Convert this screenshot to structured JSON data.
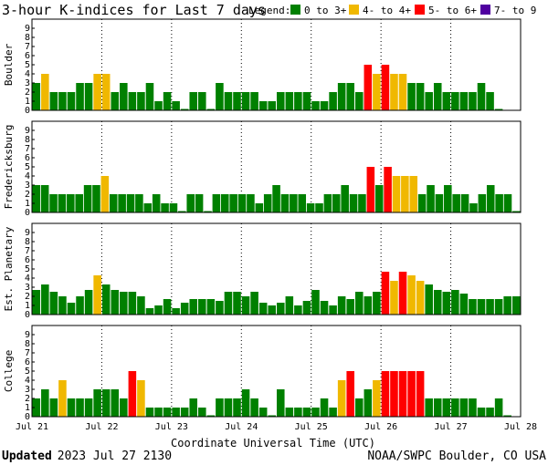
{
  "chart_data": {
    "type": "bar",
    "title": "3-hour K-indices for Last 7 days",
    "legend": {
      "label": "Legend:",
      "entries": [
        {
          "label": "0 to 3+",
          "color": "#008000"
        },
        {
          "label": "4- to 4+",
          "color": "#f0b800"
        },
        {
          "label": "5- to 6+",
          "color": "#ff0000"
        },
        {
          "label": "7- to 9",
          "color": "#5000a0"
        }
      ]
    },
    "xlabel": "Coordinate Universal Time (UTC)",
    "x_ticks": [
      "Jul 21",
      "Jul 22",
      "Jul 23",
      "Jul 24",
      "Jul 25",
      "Jul 26",
      "Jul 27",
      "Jul 28"
    ],
    "ylim": [
      0,
      9
    ],
    "y_ticks": [
      "0",
      "1",
      "2",
      "3",
      "4",
      "5",
      "6",
      "7",
      "8",
      "9"
    ],
    "series": [
      {
        "name": "Boulder",
        "values": [
          3,
          4,
          2,
          2,
          2,
          3,
          3,
          4,
          4,
          2,
          3,
          2,
          2,
          3,
          1,
          2,
          1,
          0,
          2,
          2,
          0,
          3,
          2,
          2,
          2,
          2,
          1,
          1,
          2,
          2,
          2,
          2,
          1,
          1,
          2,
          3,
          3,
          2,
          5,
          4,
          5,
          4,
          4,
          3,
          3,
          2,
          3,
          2,
          2,
          2,
          2,
          3,
          2,
          0
        ]
      },
      {
        "name": "Fredericksburg",
        "values": [
          3,
          3,
          2,
          2,
          2,
          2,
          3,
          3,
          4,
          2,
          2,
          2,
          2,
          1,
          2,
          1,
          1,
          0,
          2,
          2,
          0,
          2,
          2,
          2,
          2,
          2,
          1,
          2,
          3,
          2,
          2,
          2,
          1,
          1,
          2,
          2,
          3,
          2,
          2,
          5,
          3,
          5,
          4,
          4,
          4,
          2,
          3,
          2,
          3,
          2,
          2,
          1,
          2,
          3,
          2,
          2,
          0
        ]
      },
      {
        "name": "Est. Planetary",
        "values": [
          2.7,
          3.3,
          2.5,
          2.0,
          1.3,
          2.0,
          2.7,
          4.3,
          3.3,
          2.7,
          2.5,
          2.5,
          2.0,
          0.7,
          1.0,
          1.7,
          0.7,
          1.3,
          1.7,
          1.7,
          1.7,
          1.5,
          2.5,
          2.5,
          2.0,
          2.5,
          1.3,
          1.0,
          1.3,
          2.0,
          1.0,
          1.5,
          2.7,
          1.5,
          1.0,
          2.0,
          1.7,
          2.5,
          2.0,
          2.5,
          4.7,
          3.7,
          4.7,
          4.3,
          3.7,
          3.3,
          2.7,
          2.5,
          2.7,
          2.3,
          1.7,
          1.7,
          1.7,
          1.7,
          2.0,
          2.0
        ]
      },
      {
        "name": "College",
        "values": [
          2,
          3,
          2,
          4,
          2,
          2,
          2,
          3,
          3,
          3,
          2,
          5,
          4,
          1,
          1,
          1,
          1,
          1,
          2,
          1,
          0,
          2,
          2,
          2,
          3,
          2,
          1,
          0,
          3,
          1,
          1,
          1,
          1,
          2,
          1,
          4,
          5,
          2,
          3,
          4,
          5,
          5,
          5,
          5,
          5,
          2,
          2,
          2,
          2,
          2,
          2,
          1,
          1,
          2,
          0
        ]
      }
    ]
  },
  "footer": {
    "updated_label": "Updated",
    "updated_value": "2023 Jul 27 2130",
    "source": "NOAA/SWPC Boulder, CO USA"
  }
}
